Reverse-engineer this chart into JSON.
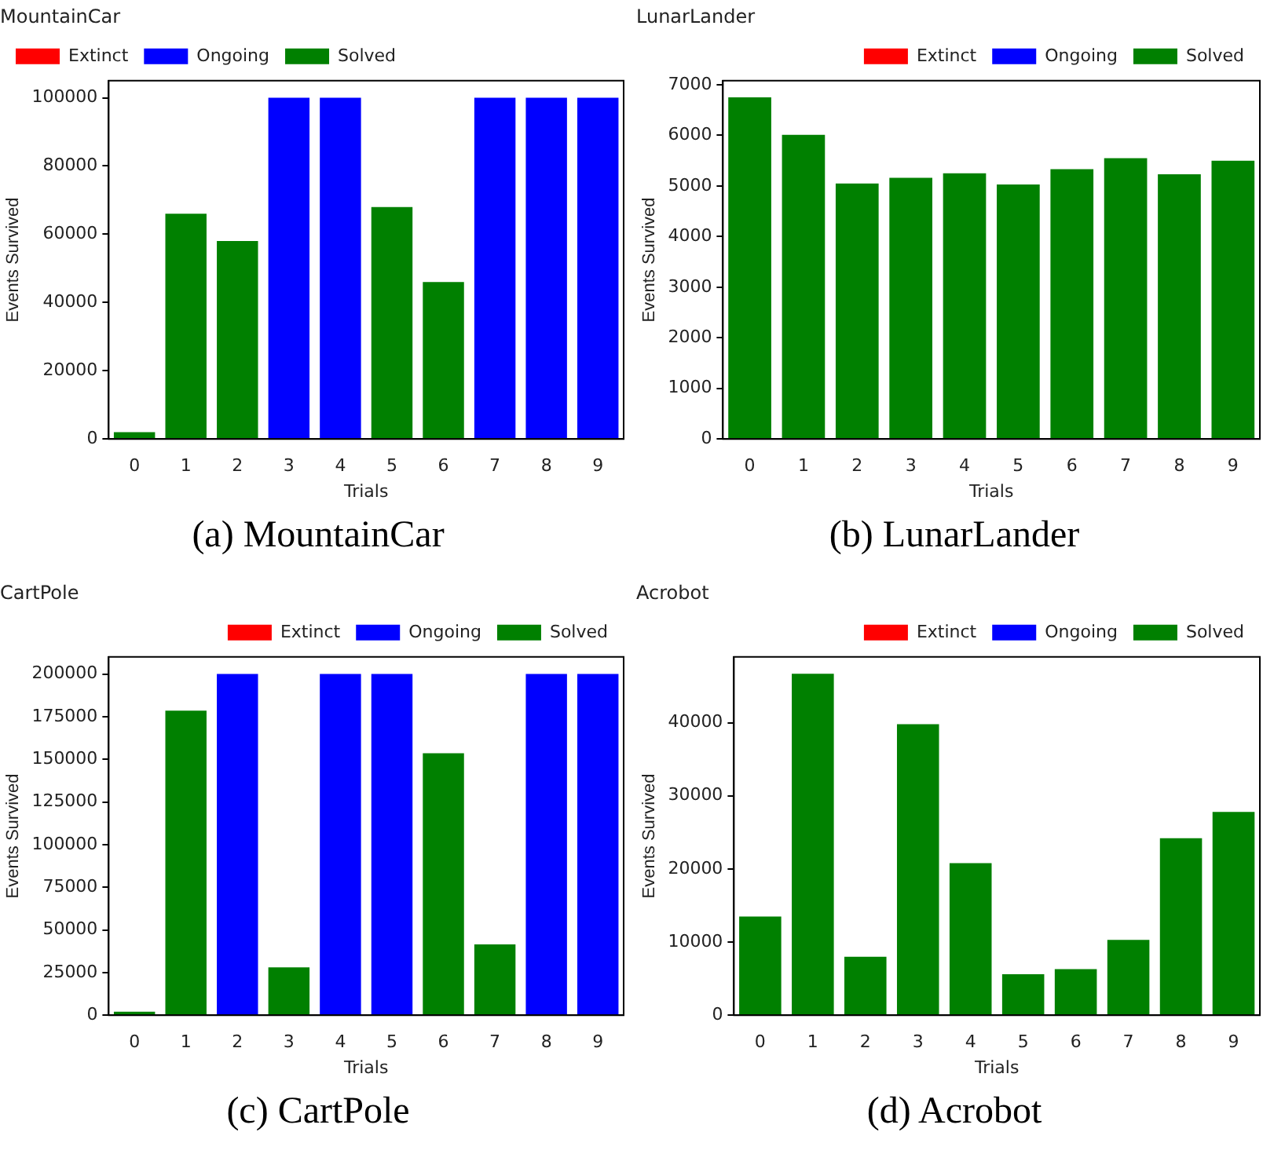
{
  "chart_data": [
    {
      "type": "bar",
      "title": "MountainCar",
      "xlabel": "Trials",
      "ylabel": "Events Survived",
      "categories": [
        "0",
        "1",
        "2",
        "3",
        "4",
        "5",
        "6",
        "7",
        "8",
        "9"
      ],
      "stacked": true,
      "legend": "top left",
      "grid": false,
      "ylim": [
        0,
        105000
      ],
      "yticks": [
        0,
        20000,
        40000,
        60000,
        80000,
        100000
      ],
      "annotations": [
        "(a) MountainCar"
      ],
      "series": [
        {
          "name": "Extinct",
          "color": "#ff0000",
          "values": [
            null,
            null,
            null,
            null,
            null,
            null,
            null,
            null,
            null,
            null
          ]
        },
        {
          "name": "Ongoing",
          "color": "#0000ff",
          "values": [
            null,
            null,
            null,
            100000,
            100000,
            null,
            null,
            100000,
            100000,
            100000
          ]
        },
        {
          "name": "Solved",
          "color": "#008000",
          "values": [
            2000,
            66000,
            58000,
            null,
            null,
            68000,
            46000,
            null,
            null,
            null
          ]
        }
      ]
    },
    {
      "type": "bar",
      "title": "LunarLander",
      "xlabel": "Trials",
      "ylabel": "Events Survived",
      "categories": [
        "0",
        "1",
        "2",
        "3",
        "4",
        "5",
        "6",
        "7",
        "8",
        "9"
      ],
      "stacked": true,
      "legend": "top right",
      "grid": false,
      "ylim": [
        0,
        7080
      ],
      "yticks": [
        0,
        1000,
        2000,
        3000,
        4000,
        5000,
        6000,
        7000
      ],
      "annotations": [
        "(b) LunarLander"
      ],
      "series": [
        {
          "name": "Extinct",
          "color": "#ff0000",
          "values": [
            null,
            null,
            null,
            null,
            null,
            null,
            null,
            null,
            null,
            null
          ]
        },
        {
          "name": "Ongoing",
          "color": "#0000ff",
          "values": [
            null,
            null,
            null,
            null,
            null,
            null,
            null,
            null,
            null,
            null
          ]
        },
        {
          "name": "Solved",
          "color": "#008000",
          "values": [
            6750,
            6010,
            5050,
            5160,
            5250,
            5030,
            5330,
            5550,
            5230,
            5500
          ]
        }
      ]
    },
    {
      "type": "bar",
      "title": "CartPole",
      "xlabel": "Trials",
      "ylabel": "Events Survived",
      "categories": [
        "0",
        "1",
        "2",
        "3",
        "4",
        "5",
        "6",
        "7",
        "8",
        "9"
      ],
      "stacked": true,
      "legend": "top right",
      "grid": false,
      "ylim": [
        0,
        210000
      ],
      "yticks": [
        0,
        25000,
        50000,
        75000,
        100000,
        125000,
        150000,
        175000,
        200000
      ],
      "annotations": [
        "(c) CartPole"
      ],
      "series": [
        {
          "name": "Extinct",
          "color": "#ff0000",
          "values": [
            null,
            null,
            null,
            null,
            null,
            null,
            null,
            null,
            null,
            null
          ]
        },
        {
          "name": "Ongoing",
          "color": "#0000ff",
          "values": [
            null,
            null,
            200000,
            null,
            200000,
            200000,
            null,
            null,
            200000,
            200000
          ]
        },
        {
          "name": "Solved",
          "color": "#008000",
          "values": [
            2000,
            178500,
            null,
            28000,
            null,
            null,
            153500,
            41500,
            null,
            null
          ]
        }
      ]
    },
    {
      "type": "bar",
      "title": "Acrobot",
      "xlabel": "Trials",
      "ylabel": "Events Survived",
      "categories": [
        "0",
        "1",
        "2",
        "3",
        "4",
        "5",
        "6",
        "7",
        "8",
        "9"
      ],
      "stacked": true,
      "legend": "top right",
      "grid": false,
      "ylim": [
        0,
        49000
      ],
      "yticks": [
        0,
        10000,
        20000,
        30000,
        40000
      ],
      "annotations": [
        "(d) Acrobot"
      ],
      "series": [
        {
          "name": "Extinct",
          "color": "#ff0000",
          "values": [
            null,
            null,
            null,
            null,
            null,
            null,
            null,
            null,
            null,
            null
          ]
        },
        {
          "name": "Ongoing",
          "color": "#0000ff",
          "values": [
            null,
            null,
            null,
            null,
            null,
            null,
            null,
            null,
            null,
            null
          ]
        },
        {
          "name": "Solved",
          "color": "#008000",
          "values": [
            13500,
            46700,
            8000,
            39800,
            20800,
            5600,
            6300,
            10300,
            24200,
            27800
          ]
        }
      ]
    }
  ]
}
